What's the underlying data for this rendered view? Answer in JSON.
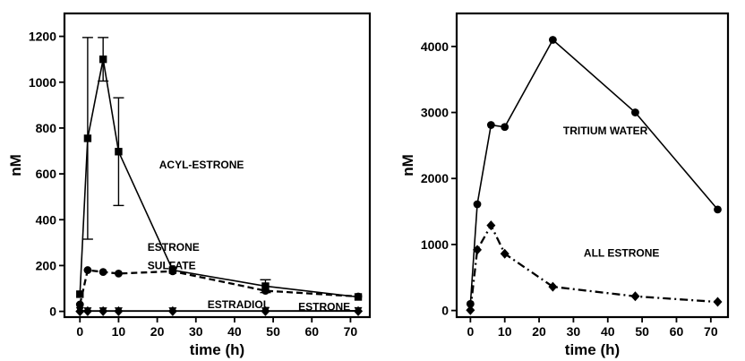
{
  "chart_data": [
    {
      "type": "line",
      "xlabel": "time (h)",
      "ylabel": "nM",
      "xlim": [
        -4,
        75
      ],
      "ylim": [
        -25,
        1300
      ],
      "xticks": [
        0,
        10,
        20,
        30,
        40,
        50,
        60,
        70
      ],
      "yticks": [
        0,
        200,
        400,
        600,
        800,
        1000,
        1200
      ],
      "grid": false,
      "legend": "none",
      "series": [
        {
          "name": "ACYL-ESTRONE",
          "marker": "square",
          "line": "solid",
          "x": [
            0,
            2,
            6,
            10,
            24,
            48,
            72
          ],
          "y": [
            75,
            755,
            1100,
            697,
            180,
            110,
            63
          ],
          "err": [
            0,
            440,
            95,
            235,
            0,
            28,
            0
          ]
        },
        {
          "name": "ESTRONE SULFATE",
          "marker": "circle",
          "line": "dashed",
          "x": [
            0,
            2,
            6,
            10,
            24,
            48,
            72
          ],
          "y": [
            30,
            180,
            172,
            165,
            175,
            90,
            65
          ]
        },
        {
          "name": "ESTRADIOL",
          "marker": "triangle-down",
          "line": "solid",
          "x": [
            0,
            2,
            6,
            10,
            24,
            48,
            72
          ],
          "y": [
            3,
            2,
            2,
            2,
            2,
            2,
            3
          ]
        },
        {
          "name": "ESTRONE",
          "marker": "diamond",
          "line": "solid",
          "x": [
            0,
            2,
            6,
            10,
            24,
            48,
            72
          ],
          "y": [
            0,
            1,
            1,
            1,
            1,
            1,
            1
          ]
        }
      ],
      "annotations": [
        {
          "text": "ACYL-ESTRONE",
          "x": 20.5,
          "y": 640
        },
        {
          "text": "ESTRONE",
          "x": 17.5,
          "y": 280
        },
        {
          "text": "SULFATE",
          "x": 17.5,
          "y": 200
        },
        {
          "text": "ESTRADIOL",
          "x": 33,
          "y": 30
        },
        {
          "text": "ESTRONE",
          "x": 56.5,
          "y": 20
        }
      ]
    },
    {
      "type": "line",
      "xlabel": "time (h)",
      "ylabel": "nM",
      "xlim": [
        -4,
        75
      ],
      "ylim": [
        -100,
        4500
      ],
      "xticks": [
        0,
        10,
        20,
        30,
        40,
        50,
        60,
        70
      ],
      "yticks": [
        0,
        1000,
        2000,
        3000,
        4000
      ],
      "grid": false,
      "legend": "none",
      "series": [
        {
          "name": "TRITIUM WATER",
          "marker": "circle",
          "line": "solid",
          "x": [
            0,
            2,
            6,
            10,
            24,
            48,
            72
          ],
          "y": [
            100,
            1610,
            2810,
            2780,
            4100,
            3000,
            1530
          ]
        },
        {
          "name": "ALL ESTRONE",
          "marker": "diamond",
          "line": "dashdot",
          "x": [
            0,
            2,
            6,
            10,
            24,
            48,
            72
          ],
          "y": [
            5,
            920,
            1290,
            860,
            360,
            215,
            130
          ]
        }
      ],
      "annotations": [
        {
          "text": "TRITIUM WATER",
          "x": 27,
          "y": 2720
        },
        {
          "text": "ALL ESTRONE",
          "x": 33,
          "y": 870
        }
      ]
    }
  ]
}
